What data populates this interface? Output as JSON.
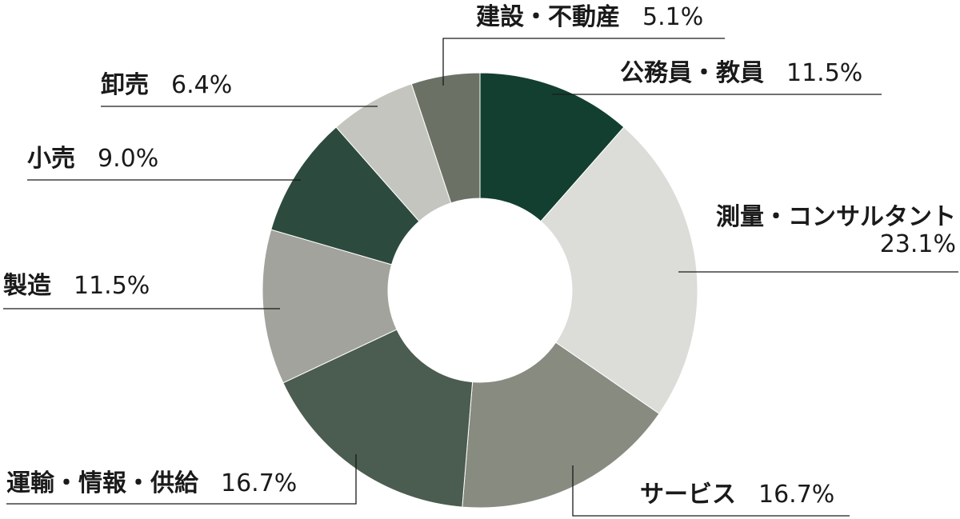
{
  "chart_data": {
    "type": "pie",
    "title": "",
    "donut": true,
    "slices": [
      {
        "label": "公務員・教員",
        "value": 11.5,
        "display": "11.5%",
        "color": "#133f31"
      },
      {
        "label": "測量・コンサルタント",
        "value": 23.1,
        "display": "23.1%",
        "color": "#dcdcd8"
      },
      {
        "label": "サービス",
        "value": 16.7,
        "display": "16.7%",
        "color": "#878b80"
      },
      {
        "label": "運輸・情報・供給",
        "value": 16.7,
        "display": "16.7%",
        "color": "#4b5c50"
      },
      {
        "label": "製造",
        "value": 11.5,
        "display": "11.5%",
        "color": "#a2a39c"
      },
      {
        "label": "小売",
        "value": 9.0,
        "display": "9.0%",
        "color": "#2d4a3e"
      },
      {
        "label": "卸売",
        "value": 6.4,
        "display": "6.4%",
        "color": "#c4c5bf"
      },
      {
        "label": "建設・不動産",
        "value": 5.1,
        "display": "5.1%",
        "color": "#6b7265"
      }
    ],
    "start_angle_deg": 0,
    "direction": "clockwise",
    "legend": "none"
  }
}
